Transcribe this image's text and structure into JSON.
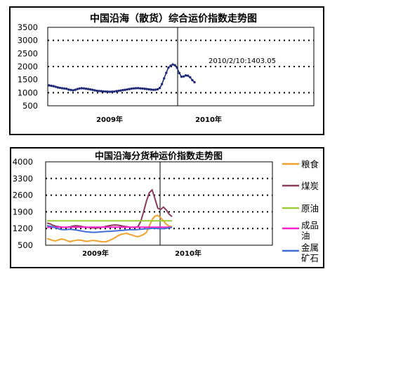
{
  "chart_data": [
    {
      "type": "line",
      "title": "中国沿海（散货）综合运价指数走势图",
      "ylim": [
        500,
        3500
      ],
      "yticks": [
        "3500",
        "3000",
        "2500",
        "2000",
        "1500",
        "1000",
        "500"
      ],
      "xticks": [
        "2009年",
        "2010年"
      ],
      "grid": "dotted horizontal at 1000, 2000, 3000",
      "legend": "none",
      "annotation": "2010/2/10:1403.05",
      "series": [
        {
          "color": "#1f2a78",
          "values": [
            1280,
            1265,
            1250,
            1225,
            1200,
            1185,
            1170,
            1160,
            1150,
            1120,
            1105,
            1090,
            1110,
            1140,
            1160,
            1170,
            1165,
            1150,
            1140,
            1125,
            1110,
            1090,
            1075,
            1065,
            1060,
            1050,
            1045,
            1040,
            1035,
            1040,
            1045,
            1060,
            1070,
            1085,
            1100,
            1110,
            1125,
            1140,
            1155,
            1165,
            1170,
            1175,
            1165,
            1160,
            1150,
            1140,
            1130,
            1120,
            1110,
            1115,
            1130,
            1180,
            1330,
            1550,
            1760,
            1960,
            2030,
            2080,
            2050,
            1950,
            1750,
            1610,
            1620,
            1660,
            1650,
            1590,
            1480,
            1403
          ]
        }
      ]
    },
    {
      "type": "line",
      "title": "中国沿海分货种运价指数走势图",
      "ylim": [
        500,
        4000
      ],
      "yticks": [
        "4000",
        "3300",
        "2600",
        "1900",
        "1200",
        "500"
      ],
      "xticks": [
        "2009年",
        "2010年"
      ],
      "grid": "dotted horizontal",
      "legend": "right",
      "series": [
        {
          "name": "粮食",
          "color": "#f2a12d",
          "values": [
            780,
            740,
            700,
            680,
            720,
            760,
            740,
            690,
            650,
            680,
            700,
            720,
            710,
            680,
            660,
            680,
            700,
            690,
            670,
            650,
            640,
            660,
            700,
            760,
            820,
            900,
            950,
            980,
            1000,
            960,
            920,
            880,
            860,
            900,
            950,
            1040,
            1300,
            1580,
            1720,
            1750,
            1650,
            1520,
            1380,
            1300,
            1280
          ]
        },
        {
          "name": "煤炭",
          "color": "#8b3a5a",
          "values": [
            1430,
            1400,
            1340,
            1300,
            1280,
            1260,
            1250,
            1250,
            1270,
            1300,
            1320,
            1310,
            1290,
            1270,
            1250,
            1240,
            1230,
            1220,
            1230,
            1250,
            1270,
            1300,
            1320,
            1340,
            1350,
            1340,
            1320,
            1290,
            1280,
            1260,
            1250,
            1240,
            1280,
            1500,
            1900,
            2350,
            2700,
            2820,
            2450,
            2050,
            2000,
            2100,
            1980,
            1800,
            1700
          ]
        },
        {
          "name": "原油",
          "color": "#9acd32",
          "values": [
            1520,
            1520,
            1520,
            1520,
            1520,
            1520,
            1520,
            1520,
            1520,
            1520,
            1520,
            1520,
            1520,
            1520,
            1520,
            1520,
            1520,
            1520,
            1520,
            1520,
            1520,
            1520,
            1520,
            1520,
            1520,
            1520,
            1520,
            1520,
            1520,
            1520,
            1520,
            1520,
            1520,
            1520,
            1520,
            1520,
            1520,
            1520,
            1520,
            1520,
            1520,
            1520,
            1520,
            1520,
            1520
          ]
        },
        {
          "name": "成品油",
          "color": "#ff22cc",
          "values": [
            1250,
            1250,
            1250,
            1255,
            1255,
            1255,
            1255,
            1255,
            1255,
            1255,
            1255,
            1255,
            1255,
            1255,
            1255,
            1255,
            1255,
            1255,
            1255,
            1255,
            1255,
            1255,
            1255,
            1255,
            1255,
            1255,
            1255,
            1255,
            1255,
            1255,
            1255,
            1255,
            1255,
            1255,
            1255,
            1255,
            1255,
            1255,
            1255,
            1255,
            1255,
            1255,
            1255,
            1260,
            1260
          ]
        },
        {
          "name": "金属矿石",
          "color": "#3d6fd6",
          "values": [
            1320,
            1300,
            1270,
            1230,
            1190,
            1160,
            1150,
            1160,
            1170,
            1160,
            1140,
            1120,
            1100,
            1080,
            1060,
            1050,
            1040,
            1040,
            1050,
            1060,
            1070,
            1080,
            1080,
            1090,
            1100,
            1110,
            1120,
            1130,
            1140,
            1150,
            1150,
            1150,
            1160,
            1170,
            1180,
            1190,
            1200,
            1210,
            1210,
            1200,
            1190,
            1200,
            1210,
            1230,
            1250
          ]
        }
      ]
    }
  ]
}
